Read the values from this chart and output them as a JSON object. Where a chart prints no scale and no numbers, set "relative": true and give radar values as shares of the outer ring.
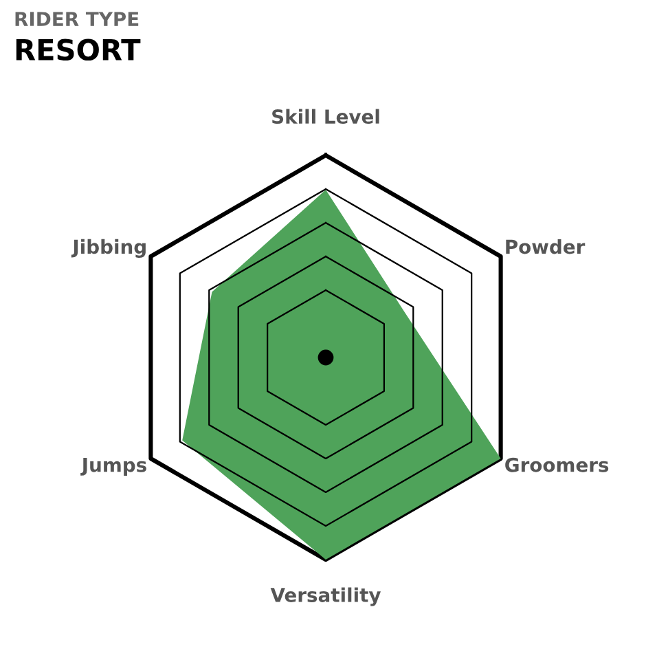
{
  "chart_data": {
    "type": "radar",
    "title": "RESORT",
    "subtitle": "RIDER TYPE",
    "categories": [
      "Skill Level",
      "Powder",
      "Groomers",
      "Versatility",
      "Jumps",
      "Jibbing"
    ],
    "relative": true,
    "grid": true,
    "series": [
      {
        "color": "#4fa35a",
        "values": [
          0.83,
          0.45,
          1.0,
          1.0,
          0.82,
          0.65
        ]
      }
    ]
  }
}
